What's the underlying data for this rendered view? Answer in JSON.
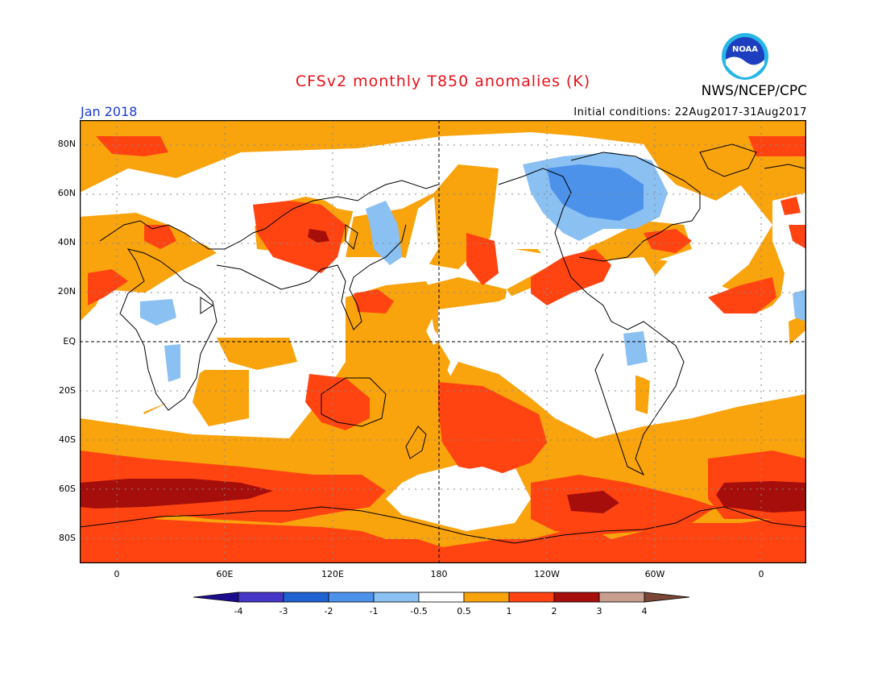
{
  "header": {
    "title": "CFSv2 monthly T850 anomalies (K)",
    "agency": "NWS/NCEP/CPC",
    "valid_month": "Jan 2018",
    "initial_conditions": "Initial conditions: 22Aug2017-31Aug2017",
    "logo_text": "NOAA"
  },
  "map": {
    "lat_labels": [
      "80N",
      "60N",
      "40N",
      "20N",
      "EQ",
      "20S",
      "40S",
      "60S",
      "80S"
    ],
    "lon_labels": [
      "0",
      "60E",
      "120E",
      "180",
      "120W",
      "60W",
      "0"
    ]
  },
  "legend": {
    "tick_labels": [
      "-4",
      "-3",
      "-2",
      "-1",
      "-0.5",
      "0.5",
      "1",
      "2",
      "3",
      "4"
    ],
    "colors": [
      "#1c0d8f",
      "#4636c8",
      "#1f62d2",
      "#4c91ea",
      "#8ac0f2",
      "#ffffff",
      "#f9a30d",
      "#ff4412",
      "#a50e0a",
      "#c89e8e",
      "#7b4636"
    ]
  }
}
